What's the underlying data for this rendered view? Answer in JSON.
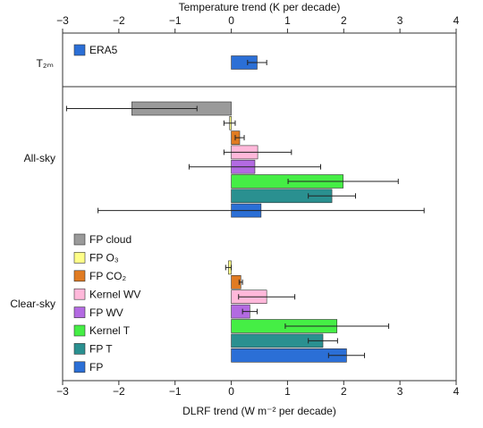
{
  "chart_data": [
    {
      "type": "bar",
      "orientation": "horizontal",
      "title": "Temperature trend (K per decade)",
      "categories": [
        "T₂ₘ"
      ],
      "series": [
        {
          "name": "ERA5",
          "color": "#2b6fd6",
          "values": [
            0.46
          ],
          "errors": [
            0.17
          ]
        }
      ],
      "xlim": [
        -3,
        4
      ],
      "xticks": [
        {
          "value": -3,
          "label": "−3"
        },
        {
          "value": -2,
          "label": "−2"
        },
        {
          "value": -1,
          "label": "−1"
        },
        0,
        1,
        2,
        3,
        4
      ]
    },
    {
      "type": "bar",
      "orientation": "horizontal",
      "xlabel": "DLRF trend (W m⁻² per decade)",
      "categories": [
        "All-sky",
        "Clear-sky"
      ],
      "series": [
        {
          "name": "FP cloud",
          "color": "#9a9a9a",
          "values": [
            -1.77,
            null
          ],
          "errors": [
            1.16,
            null
          ]
        },
        {
          "name": "FP O₃",
          "color": "#ffff88",
          "values": [
            -0.03,
            -0.05
          ],
          "errors": [
            0.1,
            0.05
          ]
        },
        {
          "name": "FP CO₂",
          "color": "#e07b22",
          "values": [
            0.15,
            0.17
          ],
          "errors": [
            0.08,
            0.03
          ]
        },
        {
          "name": "Kernel WV",
          "color": "#ffb8da",
          "values": [
            0.47,
            0.63
          ],
          "errors": [
            0.6,
            0.5
          ]
        },
        {
          "name": "FP WV",
          "color": "#b36ae2",
          "values": [
            0.42,
            0.33
          ],
          "errors": [
            1.17,
            0.13
          ]
        },
        {
          "name": "Kernel T",
          "color": "#45ee45",
          "values": [
            1.99,
            1.88
          ],
          "errors": [
            0.98,
            0.92
          ]
        },
        {
          "name": "FP T",
          "color": "#2a9090",
          "values": [
            1.79,
            1.63
          ],
          "errors": [
            0.42,
            0.26
          ]
        },
        {
          "name": "FP",
          "color": "#2b6fd6",
          "values": [
            0.53,
            2.05
          ],
          "errors": [
            2.9,
            0.32
          ]
        }
      ],
      "xlim": [
        -3,
        4
      ],
      "xticks": [
        {
          "value": -3,
          "label": "−3"
        },
        {
          "value": -2,
          "label": "−2"
        },
        {
          "value": -1,
          "label": "−1"
        },
        0,
        1,
        2,
        3,
        4
      ]
    }
  ]
}
